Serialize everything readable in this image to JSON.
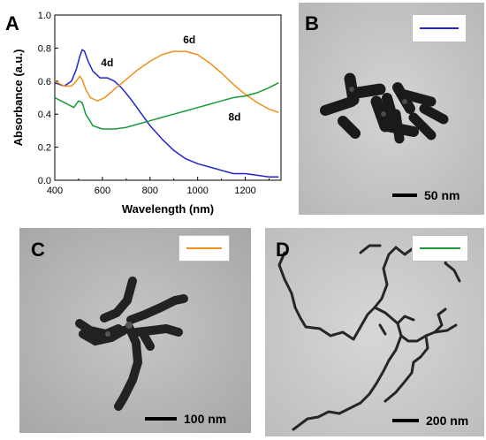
{
  "panels": {
    "a": {
      "letter": "A"
    },
    "b": {
      "letter": "B",
      "scale_label": "50 nm",
      "legend_color": "#1f24d4"
    },
    "c": {
      "letter": "C",
      "scale_label": "100 nm",
      "legend_color": "#f0901a"
    },
    "d": {
      "letter": "D",
      "scale_label": "200 nm",
      "legend_color": "#1a9a36"
    }
  },
  "chart_data": {
    "type": "line",
    "title": "",
    "xlabel": "Wavelength (nm)",
    "ylabel": "Absorbance (a.u.)",
    "xlim": [
      400,
      1350
    ],
    "ylim": [
      0.0,
      1.0
    ],
    "xticks": [
      400,
      600,
      800,
      1000,
      1200
    ],
    "yticks": [
      0.0,
      0.2,
      0.4,
      0.6,
      0.8,
      1.0
    ],
    "ytick_labels": [
      "0.0",
      "0.2",
      "0.4",
      "0.6",
      "0.8",
      "1.0"
    ],
    "series": [
      {
        "name": "4d",
        "color": "#1f24d4",
        "x": [
          400,
          440,
          470,
          490,
          505,
          515,
          525,
          540,
          560,
          590,
          620,
          650,
          680,
          720,
          760,
          800,
          850,
          900,
          950,
          1000,
          1050,
          1100,
          1150,
          1200,
          1250,
          1300,
          1340
        ],
        "y": [
          0.59,
          0.57,
          0.6,
          0.67,
          0.75,
          0.79,
          0.78,
          0.72,
          0.66,
          0.62,
          0.62,
          0.6,
          0.56,
          0.49,
          0.41,
          0.33,
          0.25,
          0.18,
          0.13,
          0.1,
          0.08,
          0.06,
          0.04,
          0.04,
          0.03,
          0.02,
          0.02
        ]
      },
      {
        "name": "6d",
        "color": "#f0901a",
        "x": [
          400,
          440,
          470,
          490,
          505,
          515,
          530,
          550,
          580,
          610,
          650,
          700,
          750,
          800,
          850,
          900,
          950,
          1000,
          1050,
          1100,
          1150,
          1200,
          1250,
          1300,
          1340
        ],
        "y": [
          0.6,
          0.57,
          0.57,
          0.6,
          0.63,
          0.61,
          0.55,
          0.5,
          0.48,
          0.5,
          0.55,
          0.61,
          0.67,
          0.72,
          0.76,
          0.78,
          0.78,
          0.76,
          0.71,
          0.65,
          0.58,
          0.52,
          0.47,
          0.43,
          0.41
        ]
      },
      {
        "name": "8d",
        "color": "#1a9a36",
        "x": [
          400,
          440,
          480,
          500,
          515,
          530,
          560,
          600,
          650,
          700,
          750,
          800,
          850,
          900,
          950,
          1000,
          1050,
          1100,
          1150,
          1200,
          1250,
          1300,
          1340
        ],
        "y": [
          0.5,
          0.47,
          0.44,
          0.48,
          0.47,
          0.4,
          0.33,
          0.31,
          0.31,
          0.32,
          0.34,
          0.36,
          0.38,
          0.4,
          0.42,
          0.44,
          0.46,
          0.48,
          0.5,
          0.51,
          0.53,
          0.56,
          0.59
        ]
      }
    ],
    "annotations": [
      {
        "text": "4d",
        "x": 620,
        "y": 0.69
      },
      {
        "text": "6d",
        "x": 965,
        "y": 0.83
      },
      {
        "text": "8d",
        "x": 1155,
        "y": 0.36
      }
    ]
  }
}
